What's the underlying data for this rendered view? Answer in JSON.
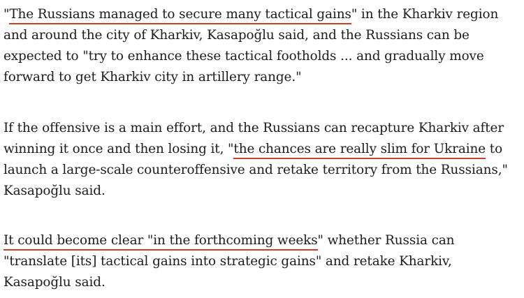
{
  "article": {
    "paragraphs": [
      {
        "lines": [
          [
            {
              "t": "\""
            },
            {
              "t": "The Russians managed to secure many tactical gains",
              "link": true
            },
            {
              "t": "\" in the Kharkiv region"
            }
          ],
          [
            {
              "t": "and around the city of Kharkiv, Kasapoğlu said, and the Russians can be"
            }
          ],
          [
            {
              "t": "expected to \"try to enhance these tactical footholds ... and gradually move"
            }
          ],
          [
            {
              "t": "forward to get Kharkiv city in artillery range.\""
            }
          ]
        ]
      },
      {
        "lines": [
          [
            {
              "t": "If the offensive is a main effort, and the Russians can recapture Kharkiv after"
            }
          ],
          [
            {
              "t": "winning it once and then losing it, \""
            },
            {
              "t": "the chances are really slim for Ukraine",
              "link": true
            },
            {
              "t": " to"
            }
          ],
          [
            {
              "t": "launch a large-scale counteroffensive and retake territory from the Russians,\""
            }
          ],
          [
            {
              "t": "Kasapoğlu said."
            }
          ]
        ]
      },
      {
        "lines": [
          [
            {
              "t": "It could become clear \"in the forthcoming weeks",
              "link": true
            },
            {
              "t": "\" whether Russia can"
            }
          ],
          [
            {
              "t": "\"translate [its] tactical gains into strategic gains\" and retake Kharkiv,"
            }
          ],
          [
            {
              "t": "Kasapoğlu said."
            }
          ]
        ]
      }
    ],
    "colors": {
      "text": "#1c1c1c",
      "link_underline": "#c9402a"
    }
  }
}
